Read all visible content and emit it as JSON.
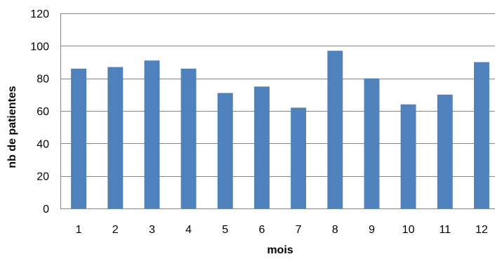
{
  "chart_data": {
    "type": "bar",
    "categories": [
      "1",
      "2",
      "3",
      "4",
      "5",
      "6",
      "7",
      "8",
      "9",
      "10",
      "11",
      "12"
    ],
    "values": [
      86,
      87,
      91,
      86,
      71,
      75,
      62,
      97,
      80,
      64,
      70,
      90
    ],
    "title": "",
    "xlabel": "mois",
    "ylabel": "nb de patientes",
    "ylim": [
      0,
      120
    ],
    "yticks": [
      0,
      20,
      40,
      60,
      80,
      100,
      120
    ],
    "grid": true,
    "legend": "none",
    "bar_color": "#4f81bd",
    "grid_color": "#868686"
  }
}
